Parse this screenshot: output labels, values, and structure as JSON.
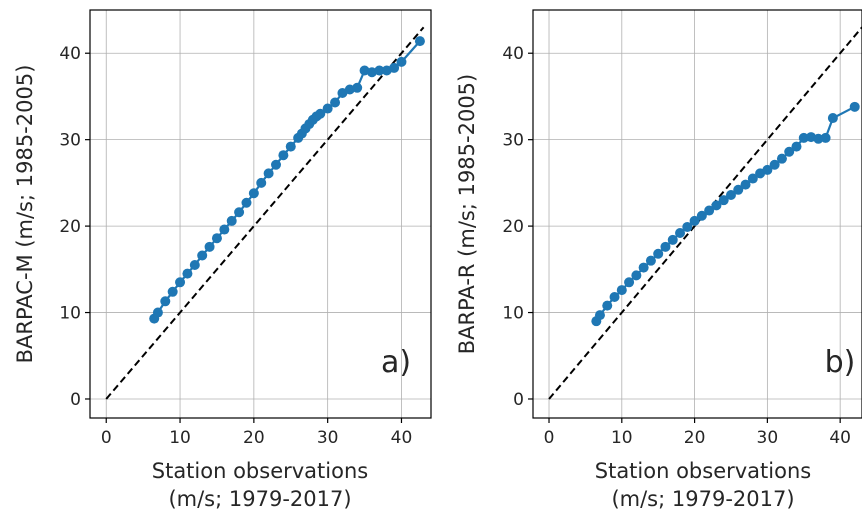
{
  "chart_data": [
    {
      "type": "line",
      "panel_label": "a)",
      "xlabel": "Station observations\n(m/s; 1979-2017)",
      "ylabel": "BARPAC-M (m/s; 1985-2005)",
      "xlim": [
        -2.2,
        44
      ],
      "ylim": [
        -2.2,
        45
      ],
      "xticks": [
        0,
        10,
        20,
        30,
        40
      ],
      "yticks": [
        0,
        10,
        20,
        30,
        40
      ],
      "grid": true,
      "reference_line": {
        "style": "dashed",
        "color": "#000000",
        "x": [
          0,
          43
        ],
        "y": [
          0,
          43
        ]
      },
      "series": [
        {
          "color": "#1f77b4",
          "x": [
            6.5,
            7,
            8,
            9,
            10,
            11,
            12,
            13,
            14,
            15,
            16,
            17,
            18,
            19,
            20,
            21,
            22,
            23,
            24,
            25,
            26,
            26.5,
            27,
            27.5,
            28,
            28.5,
            29,
            30,
            31,
            32,
            33,
            34,
            35,
            36,
            37,
            38,
            39,
            40,
            42.5
          ],
          "y": [
            9.3,
            10,
            11.3,
            12.4,
            13.5,
            14.5,
            15.5,
            16.6,
            17.6,
            18.6,
            19.6,
            20.6,
            21.6,
            22.7,
            23.8,
            25.0,
            26.1,
            27.1,
            28.2,
            29.2,
            30.2,
            30.7,
            31.3,
            31.8,
            32.3,
            32.7,
            33.0,
            33.6,
            34.3,
            35.4,
            35.8,
            36.0,
            38.0,
            37.8,
            38.0,
            38.0,
            38.3,
            39.0,
            41.4
          ]
        }
      ]
    },
    {
      "type": "line",
      "panel_label": "b)",
      "xlabel": "Station observations\n(m/s; 1979-2017)",
      "ylabel": "BARPA-R (m/s; 1985-2005)",
      "xlim": [
        -2.2,
        43
      ],
      "ylim": [
        -2.2,
        45
      ],
      "xticks": [
        0,
        10,
        20,
        30,
        40
      ],
      "yticks": [
        0,
        10,
        20,
        30,
        40
      ],
      "grid": true,
      "reference_line": {
        "style": "dashed",
        "color": "#000000",
        "x": [
          0,
          43
        ],
        "y": [
          0,
          43
        ]
      },
      "series": [
        {
          "color": "#1f77b4",
          "x": [
            6.5,
            7,
            8,
            9,
            10,
            11,
            12,
            13,
            14,
            15,
            16,
            17,
            18,
            19,
            20,
            21,
            22,
            23,
            24,
            25,
            26,
            27,
            28,
            29,
            30,
            31,
            32,
            33,
            34,
            35,
            36,
            37,
            38,
            39,
            42
          ],
          "y": [
            9.0,
            9.7,
            10.8,
            11.8,
            12.6,
            13.5,
            14.3,
            15.2,
            16.0,
            16.8,
            17.6,
            18.4,
            19.2,
            19.9,
            20.6,
            21.2,
            21.8,
            22.4,
            23.0,
            23.6,
            24.2,
            24.8,
            25.5,
            26.1,
            26.5,
            27.1,
            27.8,
            28.6,
            29.2,
            30.2,
            30.3,
            30.1,
            30.2,
            32.5,
            33.8
          ]
        }
      ]
    }
  ]
}
